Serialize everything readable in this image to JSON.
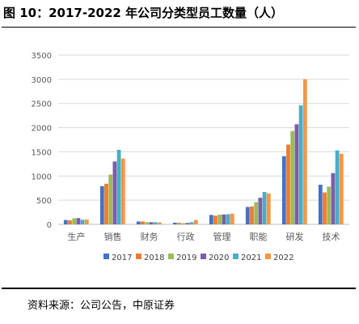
{
  "header": {
    "title": "图 10：2017-2022 年公司分类型员工数量（人）"
  },
  "footer": {
    "source": "资料来源：公司公告，中原证券"
  },
  "chart_data": {
    "type": "bar",
    "title": "",
    "xlabel": "",
    "ylabel": "",
    "categories": [
      "生产",
      "销售",
      "财务",
      "行政",
      "管理",
      "职能",
      "研发",
      "技术"
    ],
    "ylim": [
      0,
      3500
    ],
    "yticks": [
      0,
      500,
      1000,
      1500,
      2000,
      2500,
      3000,
      3500
    ],
    "grid": "horizontal",
    "legend": "bottom",
    "series": [
      {
        "name": "2017",
        "color": "#4472C4",
        "values": [
          90,
          790,
          60,
          35,
          195,
          360,
          1410,
          820
        ]
      },
      {
        "name": "2018",
        "color": "#ED7D31",
        "values": [
          85,
          840,
          60,
          30,
          180,
          370,
          1650,
          660
        ]
      },
      {
        "name": "2019",
        "color": "#A5A5A5",
        "values": [
          125,
          1030,
          45,
          25,
          200,
          460,
          1930,
          780
        ]
      },
      {
        "name": "2020",
        "color": "#7A5EA8",
        "values": [
          130,
          1300,
          45,
          30,
          205,
          550,
          2070,
          1060
        ]
      },
      {
        "name": "2021",
        "color": "#4BACC6",
        "values": [
          95,
          1540,
          45,
          45,
          210,
          670,
          2460,
          1530
        ]
      },
      {
        "name": "2022",
        "color": "#F79646",
        "values": [
          100,
          1360,
          40,
          90,
          220,
          640,
          3000,
          1460
        ]
      }
    ],
    "series_palette_override": {
      "2019": "#9BBB59"
    }
  }
}
